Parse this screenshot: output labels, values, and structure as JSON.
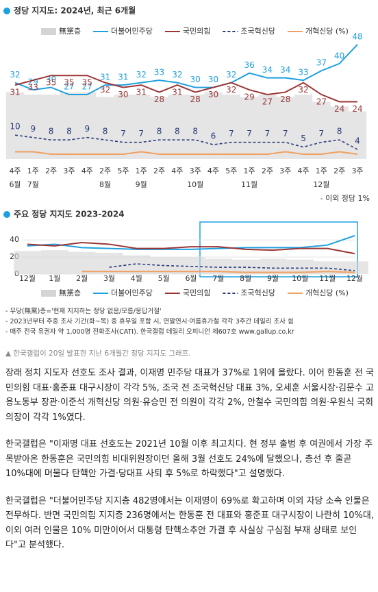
{
  "chart_data": [
    {
      "type": "line",
      "title": "정당 지지도: 2024년, 최근 6개월",
      "categories": [
        "4주",
        "1주",
        "2주",
        "3주",
        "4주",
        "2주",
        "5주",
        "1주",
        "2주",
        "4주",
        "3주",
        "4주",
        "5주",
        "1주",
        "2주",
        "3주",
        "4주",
        "1주",
        "2주",
        "3주"
      ],
      "months": [
        "6월",
        "7월",
        null,
        null,
        null,
        "8월",
        null,
        "9월",
        null,
        null,
        "10월",
        null,
        null,
        "11월",
        null,
        null,
        null,
        "12월",
        null,
        null
      ],
      "ylim": [
        0,
        50
      ],
      "series": [
        {
          "name": "無黨층",
          "color": "#d4d4d4",
          "values": [
            28,
            27,
            27,
            28,
            28,
            26,
            27,
            27,
            26,
            27,
            27,
            28,
            27,
            26,
            27,
            26,
            27,
            24,
            22,
            20
          ]
        },
        {
          "name": "더불어민주당",
          "color": "#1ea0e0",
          "values": [
            32,
            29,
            30,
            27,
            27,
            31,
            31,
            32,
            33,
            32,
            30,
            30,
            32,
            36,
            34,
            34,
            33,
            37,
            40,
            48
          ]
        },
        {
          "name": "국민의힘",
          "color": "#9b3535",
          "values": [
            31,
            33,
            35,
            35,
            35,
            32,
            30,
            31,
            28,
            31,
            28,
            30,
            32,
            29,
            27,
            28,
            32,
            27,
            24,
            24
          ]
        },
        {
          "name": "조국혁신당",
          "color": "#2a3a7a",
          "values": [
            10,
            9,
            8,
            8,
            9,
            8,
            7,
            7,
            8,
            8,
            8,
            6,
            7,
            7,
            7,
            7,
            5,
            7,
            8,
            4
          ]
        },
        {
          "name": "개혁신당 (%)",
          "color": "#f0a060",
          "values": [
            3,
            3,
            2,
            2,
            2,
            2,
            2,
            3,
            2,
            2,
            2,
            2,
            2,
            2,
            2,
            3,
            2,
            2,
            3,
            2
          ]
        }
      ],
      "note": "- 이외 정당 1%"
    },
    {
      "type": "line",
      "title": "주요 정당 지지도 2023-2024",
      "categories": [
        "12월",
        "1월",
        "2월",
        "3월",
        "4월",
        "5월",
        "6월",
        "7월",
        "8월",
        "9월",
        "10월",
        "11월",
        "12월"
      ],
      "ylim": [
        0,
        45
      ],
      "yticks": [
        0,
        20,
        40
      ],
      "series": [
        {
          "name": "無黨층",
          "color": "#d4d4d4",
          "values": [
            27,
            28,
            26,
            25,
            22,
            20,
            20,
            18,
            17,
            18,
            17,
            15,
            15
          ]
        },
        {
          "name": "더불어민주당",
          "color": "#1ea0e0",
          "values": [
            33,
            35,
            31,
            30,
            29,
            29,
            29,
            30,
            31,
            31,
            31,
            34,
            45
          ]
        },
        {
          "name": "국민의힘",
          "color": "#9b3535",
          "values": [
            35,
            33,
            37,
            35,
            30,
            30,
            32,
            32,
            29,
            28,
            30,
            30,
            24
          ]
        },
        {
          "name": "조국혁신당",
          "color": "#2a3a7a",
          "values": [
            null,
            null,
            null,
            8,
            12,
            10,
            9,
            8,
            8,
            7,
            7,
            7,
            4
          ]
        },
        {
          "name": "개혁신당 (%)",
          "color": "#f0a060",
          "values": [
            null,
            null,
            3,
            3,
            3,
            3,
            3,
            3,
            2,
            2,
            2,
            3,
            2
          ]
        }
      ]
    }
  ],
  "footnotes": [
    "- 무당(無黨)층='현재 지지하는 정당 없음/모름/응답거절'",
    "- 2023년부터 주중 조사 기간(화~목) 중 휴무일 포함 시, 연말연시·여름휴가철 각각 3주간 데일리 조사 쉼",
    "- 매주 전국 유권자 약 1,000명 전화조사(CATI). 한국갤럽 데일리 오피니언 제607호 www.gallup.co.kr"
  ],
  "caption": "▲ 한국갤럽이 20일 발표한 지난 6개월간 정당 지지도 그래프.",
  "paragraphs": [
    "장래 정치 지도자 선호도 조사 결과, 이재명 민주당 대표가 37%로 1위에 올랐다. 이어 한동훈 전 국민의힘 대표·홍준표 대구시장이 각각 5%, 조국 전 조국혁신당 대표 3%, 오세훈 서울시장·김문수 고용노동부 장관·이준석 개혁신당 의원·유승민 전 의원이 각각 2%, 안철수 국민의힘 의원·우원식 국회의장이 각각 1%였다.",
    "한국갤럽은 \"이재명 대표 선호도는 2021년 10월 이후 최고치다. 현 정부 출범 후 여권에서 가장 주목받아온 한동훈은 국민의힘 비대위원장이던 올해 3월 선호도 24%에 달했으나, 총선 후 줄곧 10%대에 머물다 탄핵안 가결·당대표 사퇴 후 5%로 하락했다\"고 설명했다.",
    "한국갤럽은 \"더불어민주당 지지층 482명에서는 이재명이 69%로 확고하며 이외 자당 소속 인물은 전무하다. 반면 국민의힘 지지층 236명에서는 한동훈 전 대표와 홍준표 대구시장이 나란히 10%대, 이외 여러 인물은 10% 미만이어서 대통령 탄핵소추안 가결 후 사실상 구심점 부재 상태로 보인다\"고 분석했다."
  ]
}
